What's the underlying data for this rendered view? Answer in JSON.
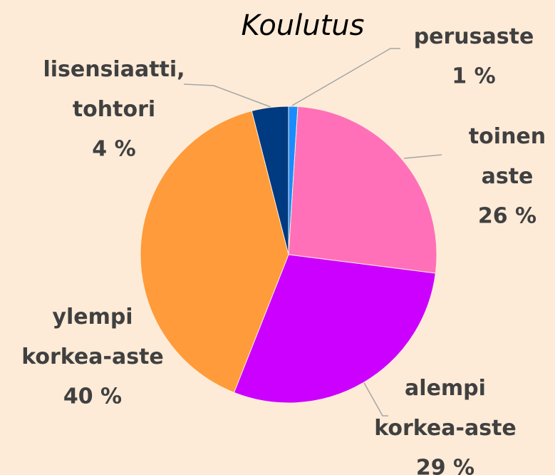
{
  "chart_data": {
    "type": "pie",
    "title": "Koulutus",
    "categories": [
      "perusaste",
      "toinen aste",
      "alempi korkea-aste",
      "ylempi korkea-aste",
      "lisensiaatti, tohtori"
    ],
    "values": [
      1,
      26,
      29,
      40,
      4
    ],
    "value_labels": [
      "1 %",
      "26 %",
      "29 %",
      "40 %",
      "4 %"
    ],
    "colors": [
      "#1a8cff",
      "#ff70b8",
      "#cc00ff",
      "#ff9b3a",
      "#003a80"
    ]
  }
}
